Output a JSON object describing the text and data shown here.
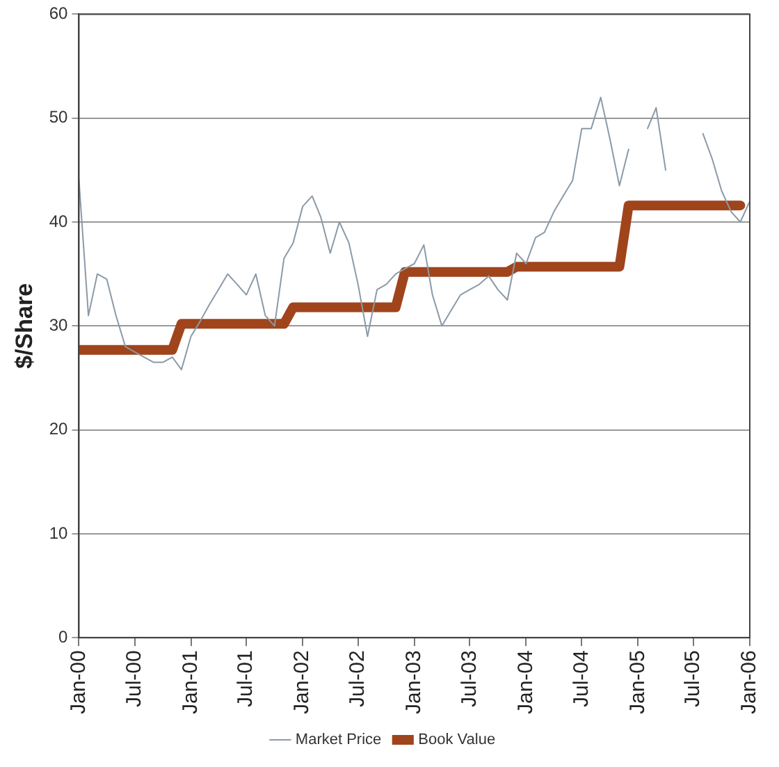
{
  "chart_data": {
    "type": "line",
    "ylabel": "$/Share",
    "xlim": [
      "2000-01",
      "2006-01"
    ],
    "ylim": [
      0,
      60
    ],
    "yticks": [
      0,
      10,
      20,
      30,
      40,
      50,
      60
    ],
    "xticks": [
      {
        "value": "2000-01",
        "label": "Jan-00"
      },
      {
        "value": "2000-07",
        "label": "Jul-00"
      },
      {
        "value": "2001-01",
        "label": "Jan-01"
      },
      {
        "value": "2001-07",
        "label": "Jul-01"
      },
      {
        "value": "2002-01",
        "label": "Jan-02"
      },
      {
        "value": "2002-07",
        "label": "Jul-02"
      },
      {
        "value": "2003-01",
        "label": "Jan-03"
      },
      {
        "value": "2003-07",
        "label": "Jul-03"
      },
      {
        "value": "2004-01",
        "label": "Jan-04"
      },
      {
        "value": "2004-07",
        "label": "Jul-04"
      },
      {
        "value": "2005-01",
        "label": "Jan-05"
      },
      {
        "value": "2005-07",
        "label": "Jul-05"
      },
      {
        "value": "2006-01",
        "label": "Jan-06"
      }
    ],
    "grid": "y",
    "legend": "bottom",
    "marker": "none",
    "series": [
      {
        "name": "Market Price",
        "color": "#8a9aa8",
        "x": [
          "2000-01",
          "2000-02",
          "2000-03",
          "2000-04",
          "2000-05",
          "2000-06",
          "2000-07",
          "2000-08",
          "2000-09",
          "2000-10",
          "2000-11",
          "2000-12",
          "2001-01",
          "2001-02",
          "2001-03",
          "2001-04",
          "2001-05",
          "2001-06",
          "2001-07",
          "2001-08",
          "2001-09",
          "2001-10",
          "2001-11",
          "2001-12",
          "2002-01",
          "2002-02",
          "2002-03",
          "2002-04",
          "2002-05",
          "2002-06",
          "2002-07",
          "2002-08",
          "2002-09",
          "2002-10",
          "2002-11",
          "2002-12",
          "2003-01",
          "2003-02",
          "2003-03",
          "2003-04",
          "2003-05",
          "2003-06",
          "2003-07",
          "2003-08",
          "2003-09",
          "2003-10",
          "2003-11",
          "2003-12",
          "2004-01",
          "2004-02",
          "2004-03",
          "2004-04",
          "2004-05",
          "2004-06",
          "2004-07",
          "2004-08",
          "2004-09",
          "2004-10",
          "2004-11",
          "2004-12",
          "2005-01",
          "2005-02",
          "2005-03",
          "2005-04",
          "2005-05",
          "2005-06",
          "2005-07",
          "2005-08",
          "2005-09",
          "2005-10",
          "2005-11",
          "2005-12",
          "2006-01"
        ],
        "values": [
          44,
          31,
          35,
          34.5,
          31,
          28,
          27.5,
          27,
          26.5,
          26.5,
          27,
          25.8,
          29,
          30.5,
          32,
          33.5,
          35,
          34,
          33,
          35,
          31,
          30,
          36.5,
          38,
          41.5,
          42.5,
          40.5,
          37,
          40,
          38,
          34,
          29,
          33.5,
          34,
          35,
          35.5,
          36,
          37.8,
          33,
          30,
          31.5,
          33,
          33.5,
          34,
          34.8,
          33.5,
          32.5,
          37,
          36,
          38.5,
          39,
          41,
          42.5,
          44,
          49,
          49,
          52,
          48,
          43.5,
          47,
          null,
          49,
          51,
          45,
          null,
          null,
          null,
          48.5,
          46,
          43,
          41,
          40,
          42
        ]
      },
      {
        "name": "Book Value",
        "color": "#a0441c",
        "x": [
          "2000-01",
          "2000-11",
          "2000-12",
          "2001-11",
          "2001-12",
          "2002-11",
          "2002-12",
          "2003-11",
          "2003-12",
          "2004-11",
          "2004-12",
          "2005-12"
        ],
        "values": [
          27.7,
          27.7,
          30.2,
          30.2,
          31.8,
          31.8,
          35.2,
          35.2,
          35.7,
          35.7,
          41.6,
          41.6
        ]
      }
    ]
  }
}
